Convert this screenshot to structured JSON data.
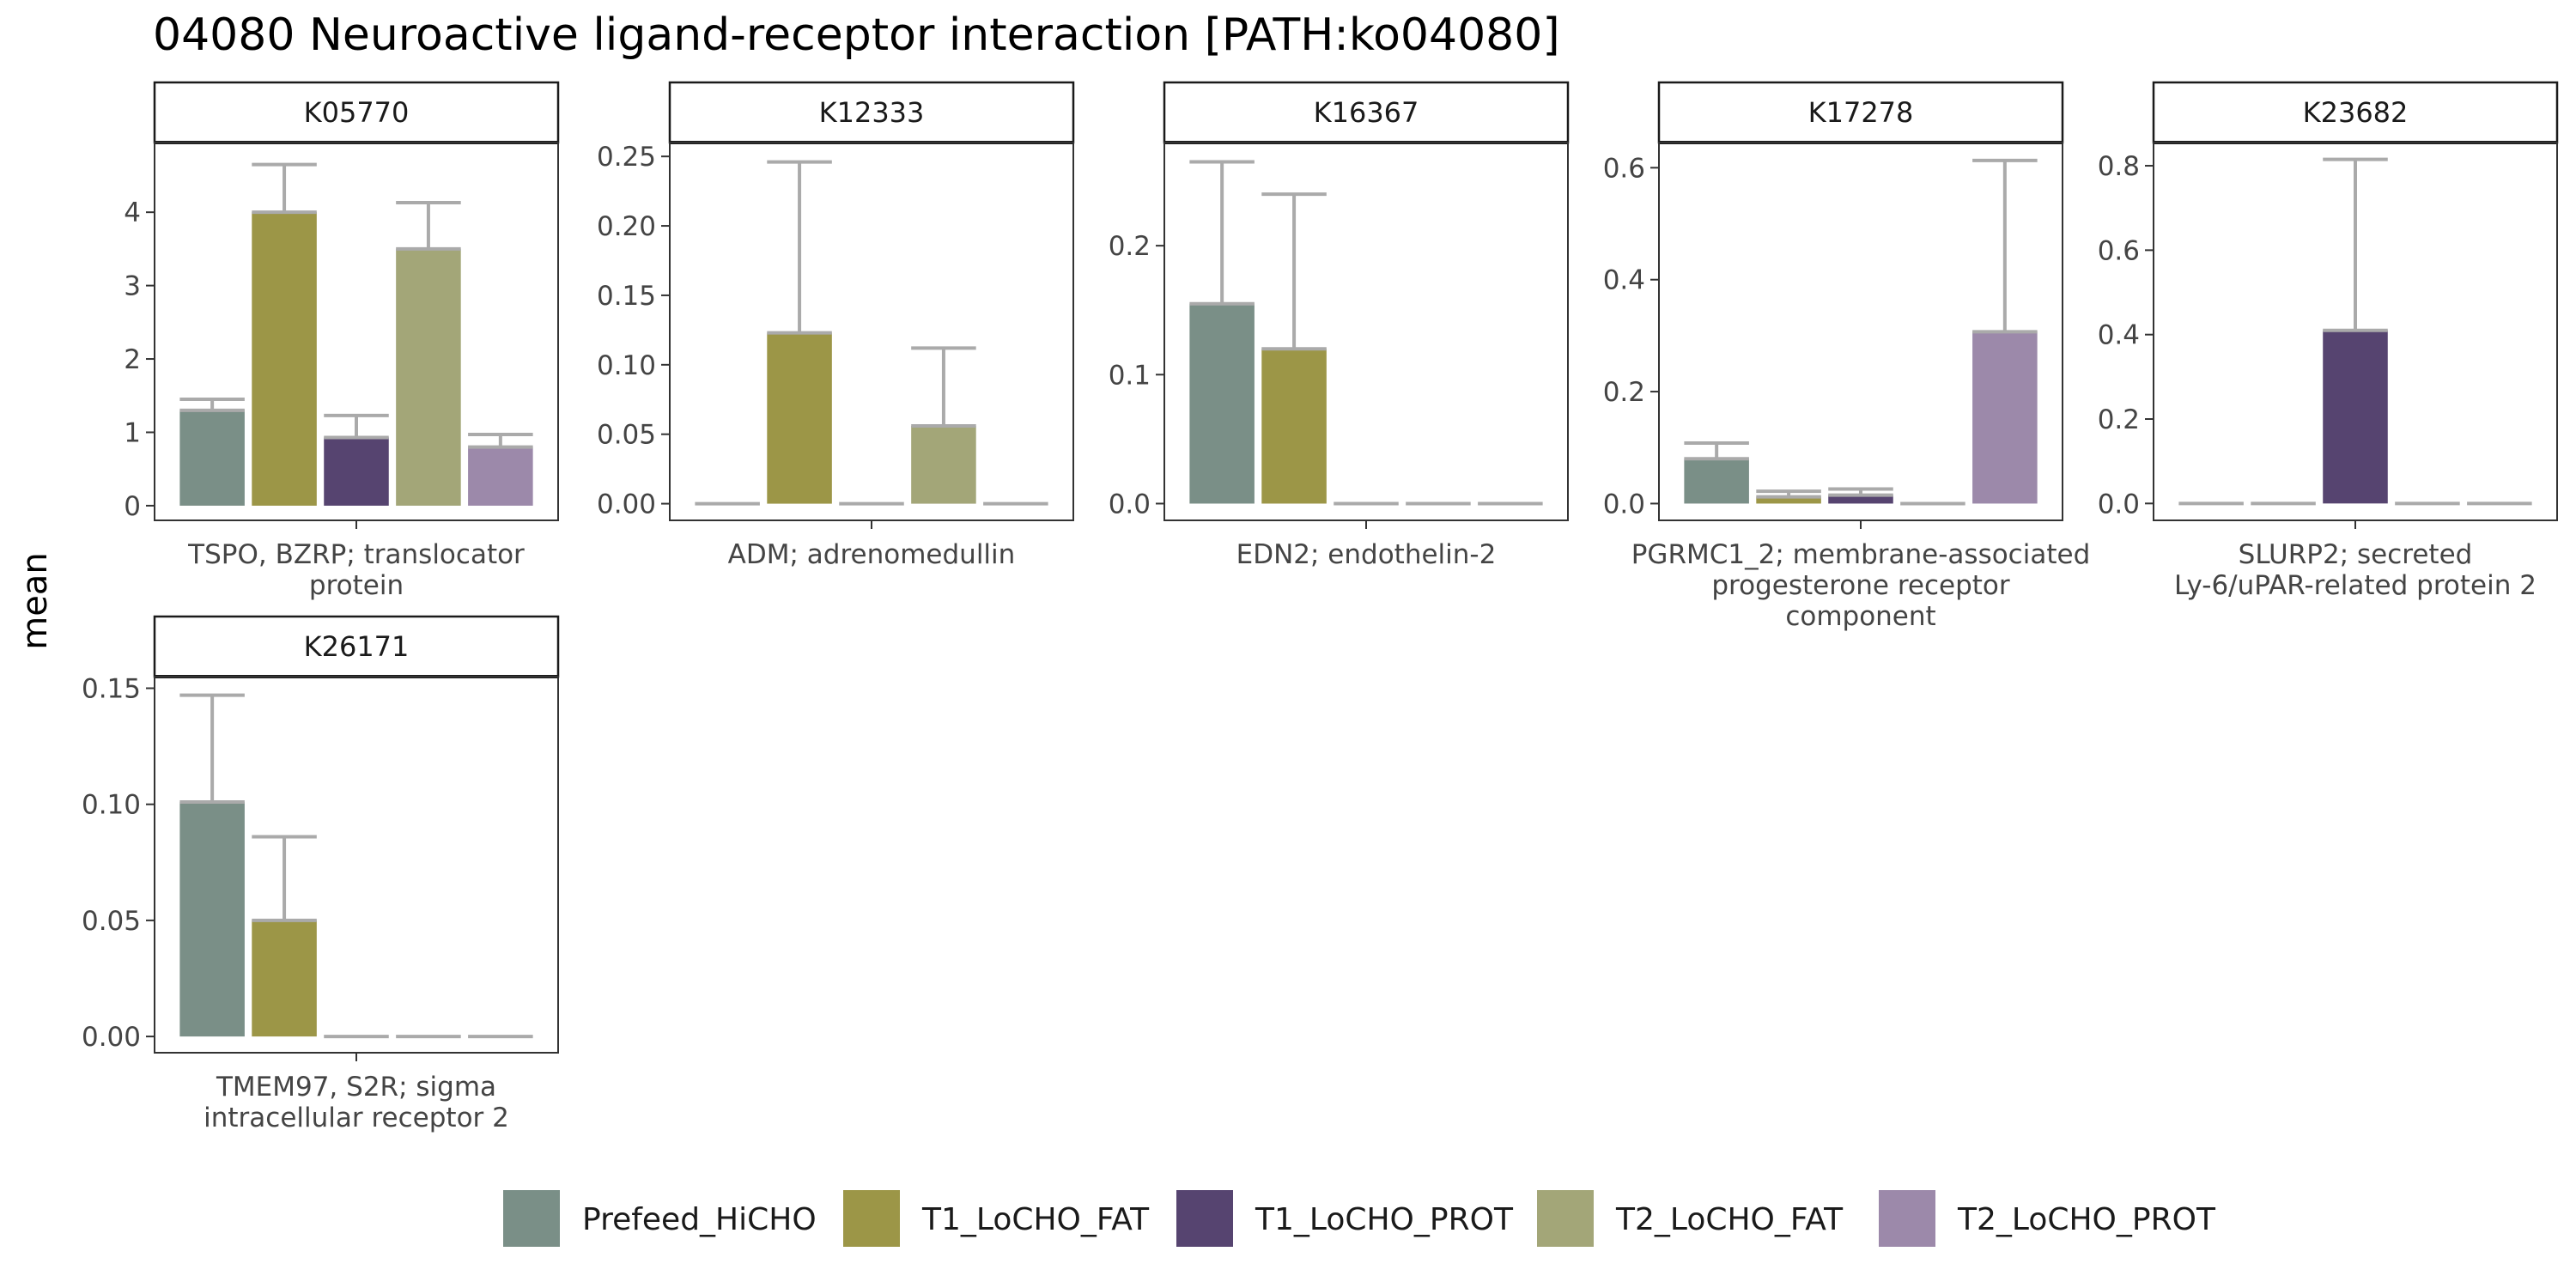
{
  "title": "04080 Neuroactive ligand-receptor interaction [PATH:ko04080]",
  "ylabel": "mean",
  "legend": {
    "position": "bottom",
    "items": [
      {
        "label": "Prefeed_HiCHO",
        "color": "#7A8F87"
      },
      {
        "label": "T1_LoCHO_FAT",
        "color": "#9C9647"
      },
      {
        "label": "T1_LoCHO_PROT",
        "color": "#564470"
      },
      {
        "label": "T2_LoCHO_FAT",
        "color": "#A3A678"
      },
      {
        "label": "T2_LoCHO_PROT",
        "color": "#9C89AA"
      }
    ]
  },
  "errorbar_color": "#AAAAAA",
  "chart_data": [
    {
      "type": "bar",
      "panel": "K05770",
      "xlabel_lines": [
        "TSPO, BZRP; translocator",
        "protein"
      ],
      "categories": [
        "Prefeed_HiCHO",
        "T1_LoCHO_FAT",
        "T1_LoCHO_PROT",
        "T2_LoCHO_FAT",
        "T2_LoCHO_PROT"
      ],
      "values": [
        1.3,
        4.0,
        0.93,
        3.5,
        0.8
      ],
      "error_upper": [
        1.45,
        4.65,
        1.23,
        4.13,
        0.97
      ],
      "ylim": [
        -0.2,
        4.95
      ],
      "ticks": [
        0,
        1,
        2,
        3,
        4
      ],
      "tick_labels": [
        "0",
        "1",
        "2",
        "3",
        "4"
      ]
    },
    {
      "type": "bar",
      "panel": "K12333",
      "xlabel_lines": [
        "ADM; adrenomedullin"
      ],
      "categories": [
        "Prefeed_HiCHO",
        "T1_LoCHO_FAT",
        "T1_LoCHO_PROT",
        "T2_LoCHO_FAT",
        "T2_LoCHO_PROT"
      ],
      "values": [
        0,
        0.123,
        0,
        0.056,
        0
      ],
      "error_upper": [
        0,
        0.246,
        0,
        0.112,
        0
      ],
      "ylim": [
        -0.012,
        0.26
      ],
      "ticks": [
        0,
        0.05,
        0.1,
        0.15,
        0.2,
        0.25
      ],
      "tick_labels": [
        "0.00",
        "0.05",
        "0.10",
        "0.15",
        "0.20",
        "0.25"
      ]
    },
    {
      "type": "bar",
      "panel": "K16367",
      "xlabel_lines": [
        "EDN2; endothelin-2"
      ],
      "categories": [
        "Prefeed_HiCHO",
        "T1_LoCHO_FAT",
        "T1_LoCHO_PROT",
        "T2_LoCHO_FAT",
        "T2_LoCHO_PROT"
      ],
      "values": [
        0.155,
        0.12,
        0,
        0,
        0
      ],
      "error_upper": [
        0.265,
        0.24,
        0,
        0,
        0
      ],
      "ylim": [
        -0.013,
        0.28
      ],
      "ticks": [
        0,
        0.1,
        0.2
      ],
      "tick_labels": [
        "0.0",
        "0.1",
        "0.2"
      ]
    },
    {
      "type": "bar",
      "panel": "K17278",
      "xlabel_lines": [
        "PGRMC1_2; membrane-associated",
        "progesterone receptor",
        "component"
      ],
      "categories": [
        "Prefeed_HiCHO",
        "T1_LoCHO_FAT",
        "T1_LoCHO_PROT",
        "T2_LoCHO_FAT",
        "T2_LoCHO_PROT"
      ],
      "values": [
        0.08,
        0.012,
        0.015,
        0,
        0.307
      ],
      "error_upper": [
        0.108,
        0.022,
        0.026,
        0,
        0.613
      ],
      "ylim": [
        -0.03,
        0.645
      ],
      "ticks": [
        0,
        0.2,
        0.4,
        0.6
      ],
      "tick_labels": [
        "0.0",
        "0.2",
        "0.4",
        "0.6"
      ]
    },
    {
      "type": "bar",
      "panel": "K23682",
      "xlabel_lines": [
        "SLURP2; secreted",
        "Ly-6/uPAR-related protein 2"
      ],
      "categories": [
        "Prefeed_HiCHO",
        "T1_LoCHO_FAT",
        "T1_LoCHO_PROT",
        "T2_LoCHO_FAT",
        "T2_LoCHO_PROT"
      ],
      "values": [
        0,
        0,
        0.41,
        0,
        0
      ],
      "error_upper": [
        0,
        0,
        0.815,
        0,
        0
      ],
      "ylim": [
        -0.04,
        0.855
      ],
      "ticks": [
        0,
        0.2,
        0.4,
        0.6,
        0.8
      ],
      "tick_labels": [
        "0.0",
        "0.2",
        "0.4",
        "0.6",
        "0.8"
      ]
    },
    {
      "type": "bar",
      "panel": "K26171",
      "xlabel_lines": [
        "TMEM97, S2R; sigma",
        "intracellular receptor 2"
      ],
      "categories": [
        "Prefeed_HiCHO",
        "T1_LoCHO_FAT",
        "T1_LoCHO_PROT",
        "T2_LoCHO_FAT",
        "T2_LoCHO_PROT"
      ],
      "values": [
        0.101,
        0.05,
        0,
        0,
        0
      ],
      "error_upper": [
        0.147,
        0.086,
        0,
        0,
        0
      ],
      "ylim": [
        -0.007,
        0.155
      ],
      "ticks": [
        0,
        0.05,
        0.1,
        0.15
      ],
      "tick_labels": [
        "0.00",
        "0.05",
        "0.10",
        "0.15"
      ]
    }
  ]
}
